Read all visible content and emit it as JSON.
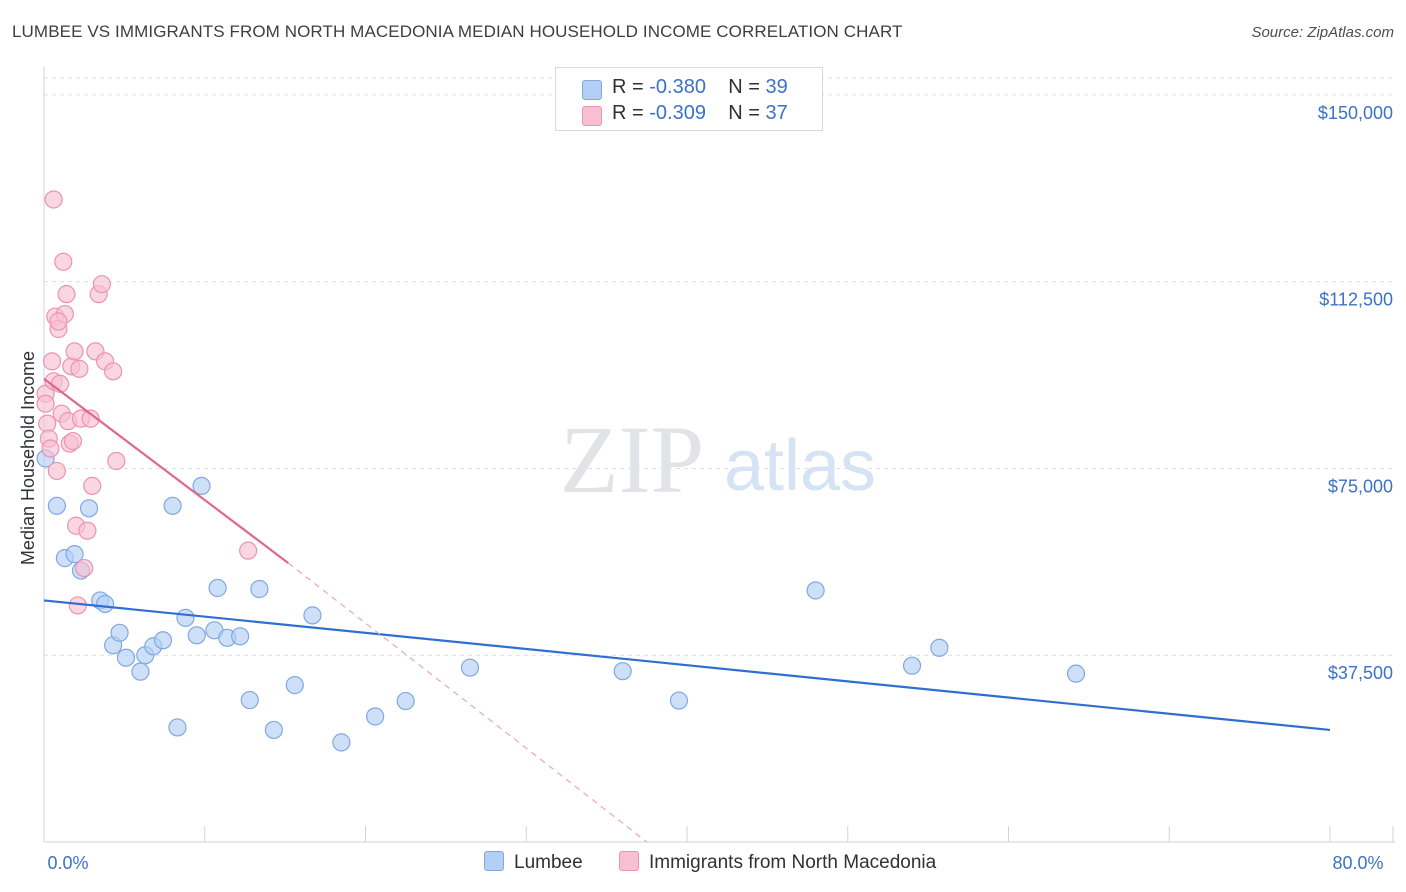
{
  "header": {
    "title": "LUMBEE VS IMMIGRANTS FROM NORTH MACEDONIA MEDIAN HOUSEHOLD INCOME CORRELATION CHART",
    "source": "Source: ZipAtlas.com"
  },
  "watermark": {
    "zip": "ZIP",
    "atlas": "atlas"
  },
  "legend": {
    "lumbee": {
      "r_label": "R = ",
      "r_value": "-0.380",
      "n_label": "N = ",
      "n_value": "39"
    },
    "macedonia": {
      "r_label": "R = ",
      "r_value": "-0.309",
      "n_label": "N = ",
      "n_value": "37"
    }
  },
  "bottom_legend": {
    "lumbee": "Lumbee",
    "macedonia": "Immigrants from North Macedonia"
  },
  "chart_data": {
    "type": "scatter",
    "title": "LUMBEE VS IMMIGRANTS FROM NORTH MACEDONIA MEDIAN HOUSEHOLD INCOME CORRELATION CHART",
    "xlabel": "",
    "ylabel": "Median Household Income",
    "xlim": [
      0,
      80
    ],
    "ylim": [
      0,
      155000
    ],
    "x_tick_labels": [
      "0.0%",
      "80.0%"
    ],
    "y_ticks": [
      37500,
      75000,
      112500,
      150000
    ],
    "y_tick_labels": [
      "$37,500",
      "$75,000",
      "$112,500",
      "$150,000"
    ],
    "colors": {
      "lumbee": "#2f6fd0",
      "lumbee_fill": "#b4cff5",
      "macedonia": "#e06690",
      "macedonia_fill": "#f7c0d2"
    },
    "series": [
      {
        "name": "Lumbee",
        "points": [
          [
            0.1,
            77000
          ],
          [
            0.8,
            67500
          ],
          [
            1.3,
            57000
          ],
          [
            1.9,
            57800
          ],
          [
            2.3,
            54500
          ],
          [
            2.8,
            67000
          ],
          [
            3.5,
            48500
          ],
          [
            3.8,
            47800
          ],
          [
            4.3,
            39500
          ],
          [
            4.7,
            42000
          ],
          [
            5.1,
            37000
          ],
          [
            6.0,
            34200
          ],
          [
            6.3,
            37500
          ],
          [
            6.8,
            39300
          ],
          [
            7.4,
            40500
          ],
          [
            8.0,
            67500
          ],
          [
            8.3,
            23000
          ],
          [
            8.8,
            45000
          ],
          [
            9.5,
            41500
          ],
          [
            9.8,
            71500
          ],
          [
            10.6,
            42500
          ],
          [
            10.8,
            51000
          ],
          [
            11.4,
            41000
          ],
          [
            12.2,
            41300
          ],
          [
            12.8,
            28500
          ],
          [
            13.4,
            50800
          ],
          [
            14.3,
            22500
          ],
          [
            15.6,
            31500
          ],
          [
            16.7,
            45500
          ],
          [
            18.5,
            20000
          ],
          [
            20.6,
            25200
          ],
          [
            22.5,
            28300
          ],
          [
            26.5,
            35000
          ],
          [
            36.0,
            34300
          ],
          [
            39.5,
            28400
          ],
          [
            48.0,
            50500
          ],
          [
            54.0,
            35400
          ],
          [
            55.7,
            39000
          ],
          [
            64.2,
            33800
          ]
        ],
        "trend": {
          "x": [
            0,
            80
          ],
          "y": [
            48500,
            22500
          ]
        }
      },
      {
        "name": "Immigrants from North Macedonia",
        "points": [
          [
            0.1,
            90000
          ],
          [
            0.1,
            88000
          ],
          [
            0.2,
            84000
          ],
          [
            0.3,
            81000
          ],
          [
            0.4,
            79000
          ],
          [
            0.5,
            96500
          ],
          [
            0.6,
            92500
          ],
          [
            0.7,
            105500
          ],
          [
            0.8,
            74500
          ],
          [
            0.9,
            103000
          ],
          [
            1.0,
            92000
          ],
          [
            1.1,
            86000
          ],
          [
            1.2,
            116500
          ],
          [
            1.3,
            106000
          ],
          [
            1.4,
            110000
          ],
          [
            1.5,
            84500
          ],
          [
            1.6,
            80000
          ],
          [
            1.7,
            95500
          ],
          [
            1.8,
            80500
          ],
          [
            1.9,
            98500
          ],
          [
            2.0,
            63500
          ],
          [
            2.1,
            47500
          ],
          [
            2.2,
            95000
          ],
          [
            2.3,
            85000
          ],
          [
            2.5,
            55000
          ],
          [
            2.7,
            62500
          ],
          [
            2.9,
            85000
          ],
          [
            3.0,
            71500
          ],
          [
            3.2,
            98500
          ],
          [
            3.4,
            110000
          ],
          [
            3.6,
            112000
          ],
          [
            3.8,
            96500
          ],
          [
            4.3,
            94500
          ],
          [
            4.5,
            76500
          ],
          [
            12.7,
            58500
          ],
          [
            0.6,
            129000
          ],
          [
            0.9,
            104500
          ]
        ],
        "trend": {
          "x": [
            0,
            15.2
          ],
          "y": [
            93000,
            56000
          ]
        },
        "trend_dashed": {
          "x": [
            15.2,
            37.5
          ],
          "y": [
            56000,
            0
          ]
        }
      }
    ]
  }
}
